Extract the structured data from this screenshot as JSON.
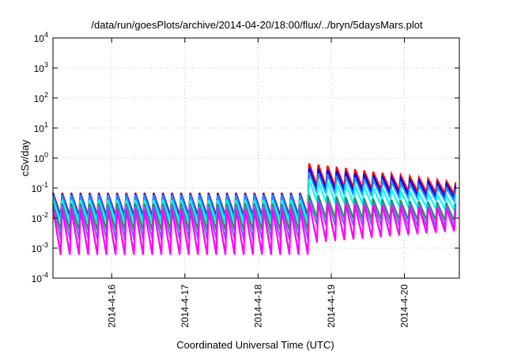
{
  "chart_data": {
    "type": "line",
    "title": "/data/run/goesPlots/archive/2014-04-20/18:00/flux/../bryn/5daysMars.plot",
    "xlabel": "Coordinated Universal Time (UTC)",
    "ylabel": "cSv/day",
    "x_unit": "days",
    "xlim": [
      "2014-04-15 04:45",
      "2014-04-20 18:00"
    ],
    "x_ticks": [
      {
        "label": "2014-4-16",
        "at": "2014-04-16 00:00"
      },
      {
        "label": "2014-4-17",
        "at": "2014-04-17 00:00"
      },
      {
        "label": "2014-4-18",
        "at": "2014-04-18 00:00"
      },
      {
        "label": "2014-4-19",
        "at": "2014-04-19 00:00"
      },
      {
        "label": "2014-4-20",
        "at": "2014-04-20 00:00"
      }
    ],
    "y_scale": "log",
    "ylim": [
      0.0001,
      10000
    ],
    "y_ticks": [
      {
        "base": "10",
        "exp": "-4",
        "value": 0.0001
      },
      {
        "base": "10",
        "exp": "-3",
        "value": 0.001
      },
      {
        "base": "10",
        "exp": "-2",
        "value": 0.01
      },
      {
        "base": "10",
        "exp": "-1",
        "value": 0.1
      },
      {
        "base": "10",
        "exp": "0",
        "value": 1
      },
      {
        "base": "10",
        "exp": "1",
        "value": 10
      },
      {
        "base": "10",
        "exp": "2",
        "value": 100
      },
      {
        "base": "10",
        "exp": "3",
        "value": 1000
      },
      {
        "base": "10",
        "exp": "4",
        "value": 10000
      }
    ],
    "grid": true,
    "legend": "none",
    "series_pattern": {
      "description_free": true,
      "cycle_days": 0.125,
      "step_change_at": "2014-04-18 15:00",
      "series": [
        {
          "color": "#ff0000",
          "peak_before": 0.07,
          "trough_before": 0.012,
          "peak_after": 0.7,
          "trough_after": 0.12,
          "peak_end": 0.15,
          "trough_end": 0.06
        },
        {
          "color": "#0000ff",
          "peak_before": 0.065,
          "trough_before": 0.01,
          "peak_after": 0.5,
          "trough_after": 0.09,
          "peak_end": 0.12,
          "trough_end": 0.045
        },
        {
          "color": "#1e90ff",
          "peak_before": 0.06,
          "trough_before": 0.009,
          "peak_after": 0.35,
          "trough_after": 0.07,
          "peak_end": 0.09,
          "trough_end": 0.035
        },
        {
          "color": "#00ffff",
          "peak_before": 0.04,
          "trough_before": 0.007,
          "peak_after": 0.2,
          "trough_after": 0.035,
          "peak_end": 0.05,
          "trough_end": 0.018
        },
        {
          "color": "#2e8b57",
          "peak_before": 0.03,
          "trough_before": 0.004,
          "peak_after": 0.06,
          "trough_after": 0.01,
          "peak_end": 0.03,
          "trough_end": 0.008
        },
        {
          "color": "#7b68ee",
          "peak_before": 0.025,
          "trough_before": 0.002,
          "peak_after": 0.04,
          "trough_after": 0.006,
          "peak_end": 0.025,
          "trough_end": 0.005
        },
        {
          "color": "#ff00ff",
          "peak_before": 0.02,
          "trough_before": 0.0006,
          "peak_after": 0.035,
          "trough_after": 0.0015,
          "peak_end": 0.02,
          "trough_end": 0.004
        }
      ]
    }
  }
}
